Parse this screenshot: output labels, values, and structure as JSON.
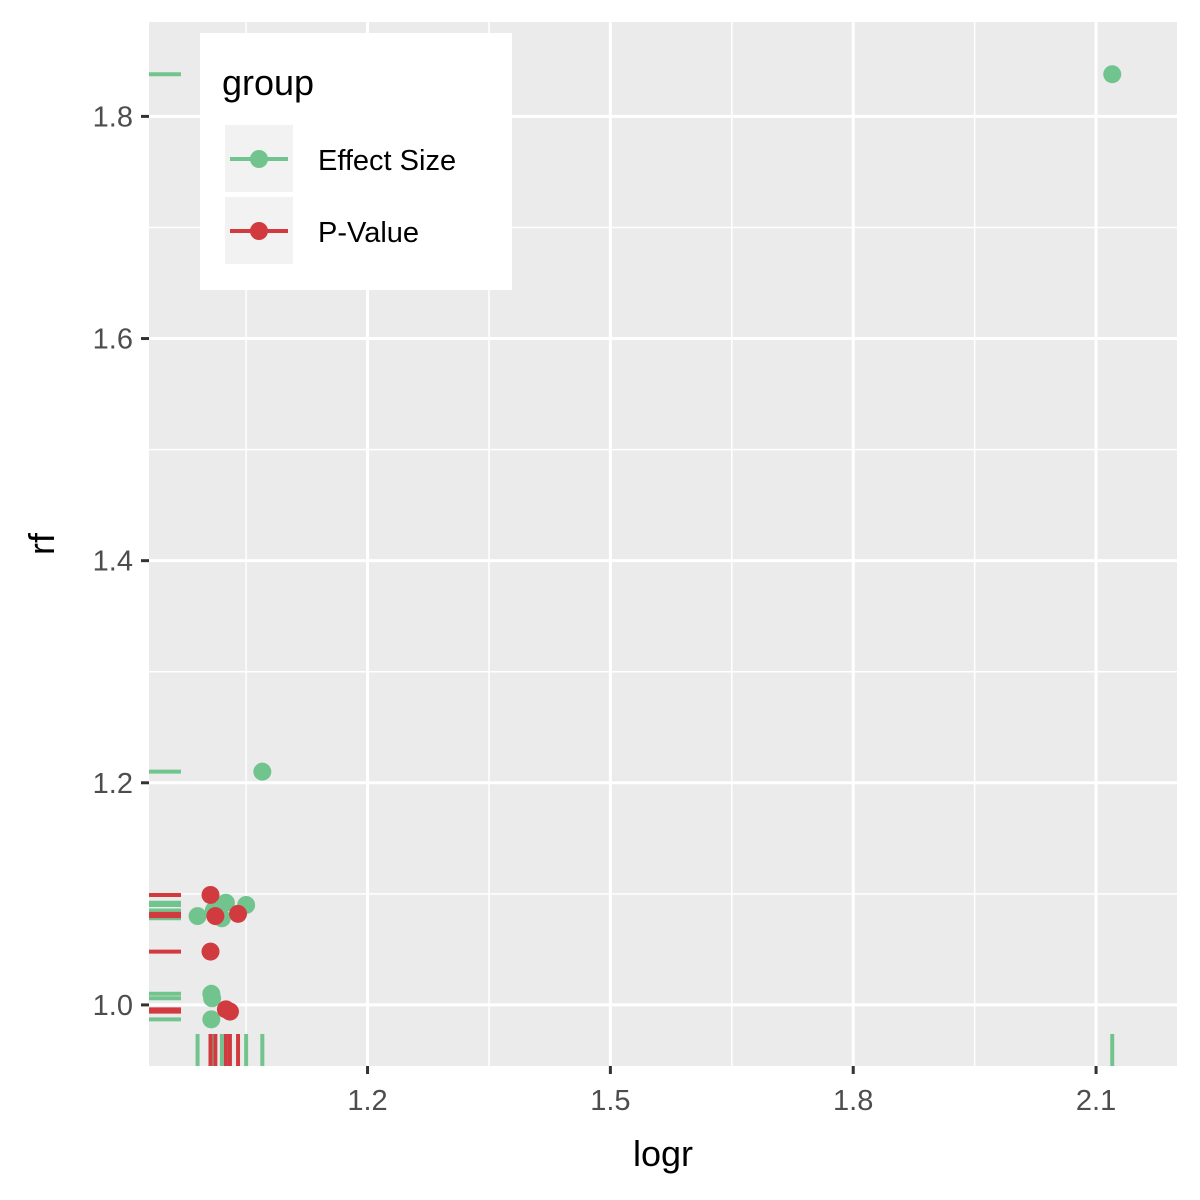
{
  "chart_data": {
    "type": "scatter",
    "title": "",
    "xlabel": "logr",
    "ylabel": "rf",
    "xlim": [
      0.93,
      2.2
    ],
    "ylim": [
      0.945,
      1.885
    ],
    "x_ticks": [
      1.2,
      1.5,
      1.8,
      2.1
    ],
    "x_tick_labels": [
      "1.2",
      "1.5",
      "1.8",
      "2.1"
    ],
    "y_ticks": [
      1.0,
      1.2,
      1.4,
      1.6,
      1.8
    ],
    "y_tick_labels": [
      "1.0",
      "1.2",
      "1.4",
      "1.6",
      "1.8"
    ],
    "grid": true,
    "rug": true,
    "legend": {
      "title": "group",
      "position": "top-left"
    },
    "series": [
      {
        "name": "Effect Size",
        "color": "#72c48e",
        "points": [
          {
            "x": 2.12,
            "y": 1.838
          },
          {
            "x": 1.07,
            "y": 1.21
          },
          {
            "x": 0.99,
            "y": 1.08
          },
          {
            "x": 1.01,
            "y": 1.085
          },
          {
            "x": 1.02,
            "y": 1.078
          },
          {
            "x": 1.025,
            "y": 1.092
          },
          {
            "x": 1.05,
            "y": 1.09
          },
          {
            "x": 1.007,
            "y": 1.01
          },
          {
            "x": 1.008,
            "y": 1.006
          },
          {
            "x": 1.007,
            "y": 0.987
          }
        ]
      },
      {
        "name": "P-Value",
        "color": "#d13b40",
        "points": [
          {
            "x": 1.006,
            "y": 1.099
          },
          {
            "x": 1.012,
            "y": 1.08
          },
          {
            "x": 1.04,
            "y": 1.082
          },
          {
            "x": 1.006,
            "y": 1.048
          },
          {
            "x": 1.025,
            "y": 0.996
          },
          {
            "x": 1.03,
            "y": 0.994
          }
        ]
      }
    ]
  }
}
